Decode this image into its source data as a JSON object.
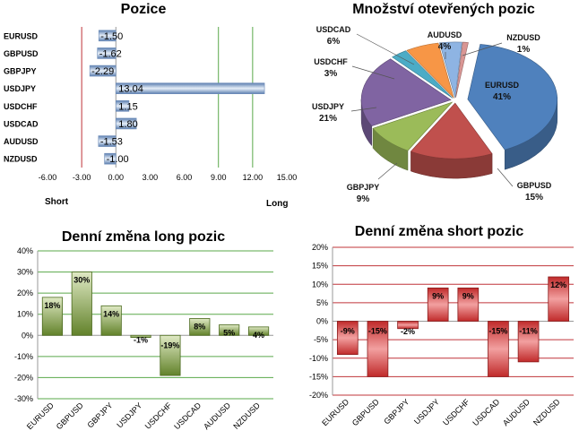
{
  "colors": {
    "grid_green": "#5aa84a",
    "grid_red": "#c0343a",
    "bar_blue_light": "#e6eef8",
    "bar_blue_dark": "#5c7fb0",
    "green_light": "#dfe9c4",
    "green_dark": "#62822a",
    "red_light": "#f2a0a0",
    "red_dark": "#c02a2a",
    "pie_eurusd": "#4f81bd",
    "pie_gbpusd": "#c0504d",
    "pie_gbpjpy": "#9bbb59",
    "pie_usdjpy": "#8064a2",
    "pie_usdchf": "#4bacc6",
    "pie_usdcad": "#f79646",
    "pie_audusd": "#8eb4e3",
    "pie_nzdusd": "#d99694"
  },
  "chart_data": [
    {
      "type": "bar",
      "orientation": "horizontal",
      "title": "Pozice",
      "categories": [
        "EURUSD",
        "GBPUSD",
        "GBPJPY",
        "USDJPY",
        "USDCHF",
        "USDCAD",
        "AUDUSD",
        "NZDUSD"
      ],
      "values": [
        -1.5,
        -1.62,
        -2.29,
        13.04,
        1.15,
        1.8,
        -1.53,
        -1.0
      ],
      "labels": [
        "-1.50",
        "-1.62",
        "-2.29",
        "13.04",
        "1.15",
        "1.80",
        "-1.53",
        "-1.00"
      ],
      "xlim": [
        -6,
        15
      ],
      "xticks": [
        "-6.00",
        "-3.00",
        "0.00",
        "3.00",
        "6.00",
        "9.00",
        "12.00",
        "15.00"
      ],
      "tick_values": [
        -6,
        -3,
        0,
        3,
        6,
        9,
        12,
        15
      ],
      "short_label": "Short",
      "long_label": "Long",
      "guide_lines": [
        -3,
        9,
        12
      ]
    },
    {
      "type": "pie",
      "title": "Množství otevřených pozic",
      "slices": [
        {
          "name": "EURUSD",
          "value": 41,
          "label": "41%"
        },
        {
          "name": "GBPUSD",
          "value": 15,
          "label": "15%"
        },
        {
          "name": "GBPJPY",
          "value": 9,
          "label": "9%"
        },
        {
          "name": "USDJPY",
          "value": 21,
          "label": "21%"
        },
        {
          "name": "USDCHF",
          "value": 3,
          "label": "3%"
        },
        {
          "name": "USDCAD",
          "value": 6,
          "label": "6%"
        },
        {
          "name": "AUDUSD",
          "value": 4,
          "label": "4%"
        },
        {
          "name": "NZDUSD",
          "value": 1,
          "label": "1%"
        }
      ]
    },
    {
      "type": "bar",
      "title": "Denní změna long pozic",
      "categories": [
        "EURUSD",
        "GBPUSD",
        "GBPJPY",
        "USDJPY",
        "USDCHF",
        "USDCAD",
        "AUDUSD",
        "NZDUSD"
      ],
      "values": [
        18,
        30,
        14,
        -1,
        -19,
        8,
        5,
        4
      ],
      "labels": [
        "18%",
        "30%",
        "14%",
        "-1%",
        "-19%",
        "8%",
        "5%",
        "4%"
      ],
      "ylim": [
        -30,
        40
      ],
      "yticks": [
        "40%",
        "30%",
        "20%",
        "10%",
        "0%",
        "-10%",
        "-20%",
        "-30%"
      ],
      "tick_values": [
        40,
        30,
        20,
        10,
        0,
        -10,
        -20,
        -30
      ],
      "grid": true
    },
    {
      "type": "bar",
      "title": "Denní změna short pozic",
      "categories": [
        "EURUSD",
        "GBPUSD",
        "GBPJPY",
        "USDJPY",
        "USDCHF",
        "USDCAD",
        "AUDUSD",
        "NZDUSD"
      ],
      "values": [
        -9,
        -15,
        -2,
        9,
        9,
        -15,
        -11,
        12
      ],
      "labels": [
        "-9%",
        "-15%",
        "-2%",
        "9%",
        "9%",
        "-15%",
        "-11%",
        "12%"
      ],
      "ylim": [
        -20,
        20
      ],
      "yticks": [
        "20%",
        "15%",
        "10%",
        "5%",
        "0%",
        "-5%",
        "-10%",
        "-15%",
        "-20%"
      ],
      "tick_values": [
        20,
        15,
        10,
        5,
        0,
        -5,
        -10,
        -15,
        -20
      ],
      "grid": true
    }
  ]
}
